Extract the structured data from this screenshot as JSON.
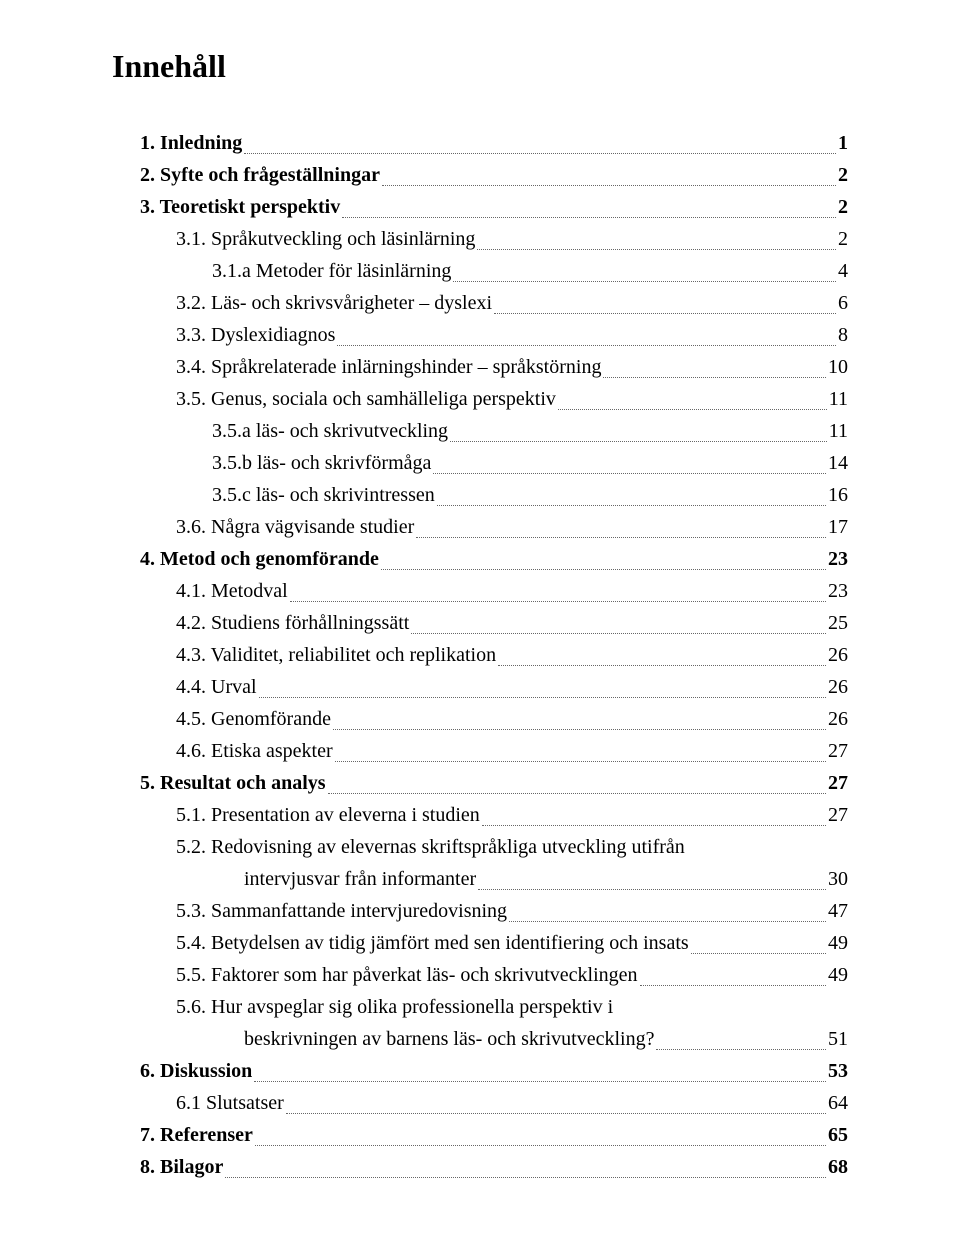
{
  "title": "Innehåll",
  "text_color": "#000000",
  "background_color": "#ffffff",
  "leader_color": "#666666",
  "title_fontsize": 32,
  "body_fontsize": 20,
  "entries": [
    {
      "label": "1. Inledning",
      "page": "1",
      "indent": 0,
      "bold": true
    },
    {
      "label": "2. Syfte och frågeställningar",
      "page": "2",
      "indent": 0,
      "bold": true
    },
    {
      "label": "3. Teoretiskt perspektiv",
      "page": "2",
      "indent": 0,
      "bold": true
    },
    {
      "label": "3.1. Språkutveckling och läsinlärning",
      "page": "2",
      "indent": 1,
      "bold": false
    },
    {
      "label": "3.1.a Metoder för läsinlärning",
      "page": "4",
      "indent": 2,
      "bold": false
    },
    {
      "label": "3.2. Läs- och skrivsvårigheter – dyslexi",
      "page": "6",
      "indent": 1,
      "bold": false
    },
    {
      "label": "3.3. Dyslexidiagnos",
      "page": "8",
      "indent": 1,
      "bold": false
    },
    {
      "label": "3.4. Språkrelaterade inlärningshinder – språkstörning",
      "page": "10",
      "indent": 1,
      "bold": false
    },
    {
      "label": "3.5. Genus, sociala och samhälleliga perspektiv",
      "page": "11",
      "indent": 1,
      "bold": false
    },
    {
      "label": "3.5.a läs- och skrivutveckling",
      "page": "11",
      "indent": 2,
      "bold": false
    },
    {
      "label": "3.5.b läs- och skrivförmåga",
      "page": "14",
      "indent": 2,
      "bold": false
    },
    {
      "label": "3.5.c läs- och skrivintressen",
      "page": "16",
      "indent": 2,
      "bold": false
    },
    {
      "label": "3.6. Några vägvisande studier",
      "page": "17",
      "indent": 1,
      "bold": false
    },
    {
      "label": "4. Metod och genomförande",
      "page": "23",
      "indent": 0,
      "bold": true
    },
    {
      "label": "4.1. Metodval",
      "page": "23",
      "indent": 1,
      "bold": false
    },
    {
      "label": "4.2. Studiens förhållningssätt",
      "page": "25",
      "indent": 1,
      "bold": false
    },
    {
      "label": "4.3. Validitet, reliabilitet och replikation",
      "page": "26",
      "indent": 1,
      "bold": false
    },
    {
      "label": "4.4. Urval",
      "page": "26",
      "indent": 1,
      "bold": false
    },
    {
      "label": "4.5. Genomförande",
      "page": "26",
      "indent": 1,
      "bold": false
    },
    {
      "label": "4.6. Etiska aspekter",
      "page": "27",
      "indent": 1,
      "bold": false
    },
    {
      "label": "5. Resultat och analys",
      "page": "27",
      "indent": 0,
      "bold": true
    },
    {
      "label": "5.1. Presentation av eleverna i studien",
      "page": "27",
      "indent": 1,
      "bold": false
    },
    {
      "label": "5.2. Redovisning av elevernas skriftspråkliga utveckling utifrån",
      "wrap": "intervjusvar från informanter",
      "page": "30",
      "indent": 1,
      "bold": false
    },
    {
      "label": "5.3. Sammanfattande intervjuredovisning",
      "page": "47",
      "indent": 1,
      "bold": false
    },
    {
      "label": "5.4. Betydelsen av tidig jämfört med sen identifiering och insats",
      "page": "49",
      "indent": 1,
      "bold": false
    },
    {
      "label": "5.5. Faktorer som har påverkat läs- och skrivutvecklingen",
      "page": "49",
      "indent": 1,
      "bold": false
    },
    {
      "label": "5.6. Hur avspeglar sig olika professionella perspektiv i",
      "wrap": "beskrivningen av barnens läs- och skrivutveckling?",
      "page": "51",
      "indent": 1,
      "bold": false
    },
    {
      "label": "6. Diskussion",
      "page": "53",
      "indent": 0,
      "bold": true
    },
    {
      "label": "6.1 Slutsatser",
      "page": "64",
      "indent": 1,
      "bold": false
    },
    {
      "label": "7. Referenser",
      "page": "65",
      "indent": 0,
      "bold": true
    },
    {
      "label": "8. Bilagor",
      "page": "68",
      "indent": 0,
      "bold": true
    }
  ]
}
